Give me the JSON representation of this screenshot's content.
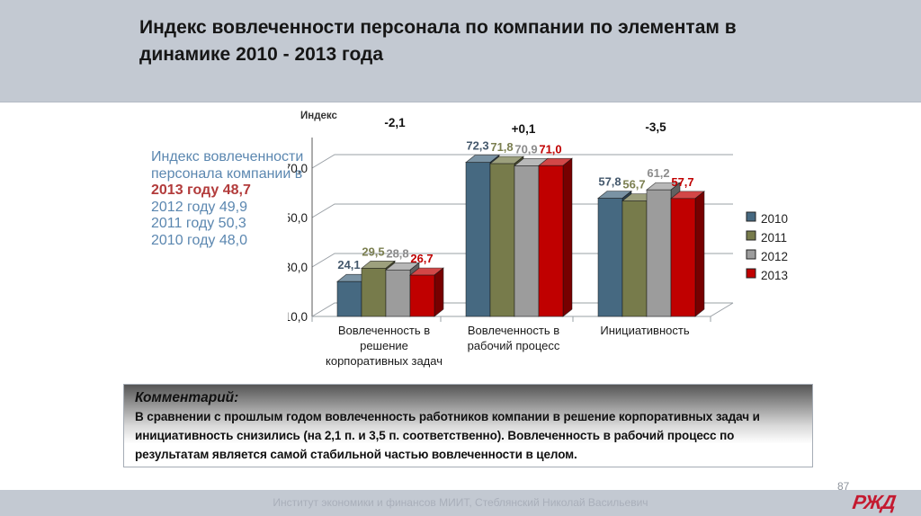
{
  "slide": {
    "title": "Индекс вовлеченности персонала по компании по элементам в динамике 2010 - 2013 года",
    "footer": {
      "credit": "Институт экономики и финансов МИИТ, Стеблянский Николай Васильевич",
      "page_number": "87",
      "logo_text": "РЖД"
    }
  },
  "info_block": {
    "lines": [
      {
        "text": "Индекс вовлеченности",
        "color": "#5B87B0",
        "bold": false
      },
      {
        "text": "персонала компании в",
        "color": "#5B87B0",
        "bold": false
      },
      {
        "text": "2013 году 48,7",
        "color": "#B23B3B",
        "bold": true
      },
      {
        "text": "2012 году 49,9",
        "color": "#5B87B0",
        "bold": false
      },
      {
        "text": "2011 году 50,3",
        "color": "#5B87B0",
        "bold": false
      },
      {
        "text": "2010 году 48,0",
        "color": "#5B87B0",
        "bold": false
      }
    ]
  },
  "comment_box": {
    "heading": "Комментарий:",
    "body": "В сравнении с прошлым годом вовлеченность работников компании в решение корпоративных задач и инициативность снизились (на 2,1 п. и 3,5 п. соответственно). Вовлеченность в рабочий процесс по результатам является самой стабильной частью вовлеченности в целом."
  },
  "chart_data": {
    "type": "bar",
    "style": "3d-clustered-column",
    "axis_title": "Индекс",
    "categories": [
      "Вовлеченность в\nрешение\nкорпоративных задач",
      "Вовлеченность в\nрабочий процесс",
      "Инициативность"
    ],
    "series": [
      {
        "name": "2010",
        "color": "#466981",
        "label_color": "#44586C",
        "values": [
          24.1,
          72.3,
          57.8
        ],
        "labels": [
          "24,1",
          "72,3",
          "57,8"
        ]
      },
      {
        "name": "2011",
        "color": "#777B4B",
        "label_color": "#7B7F50",
        "values": [
          29.5,
          71.8,
          56.7
        ],
        "labels": [
          "29,5",
          "71,8",
          "56,7"
        ]
      },
      {
        "name": "2012",
        "color": "#9C9C9C",
        "label_color": "#8C8C8C",
        "values": [
          28.8,
          70.9,
          61.2
        ],
        "labels": [
          "28,8",
          "70,9",
          "61,2"
        ]
      },
      {
        "name": "2013",
        "color": "#C00000",
        "label_color": "#C00000",
        "values": [
          26.7,
          71.0,
          57.7
        ],
        "labels": [
          "26,7",
          "71,0",
          "57,7"
        ]
      }
    ],
    "delta_labels": [
      "-2,1",
      "+0,1",
      "-3,5"
    ],
    "y_ticks": [
      10,
      30,
      50,
      70
    ],
    "y_tick_labels": [
      "10,0",
      "30,0",
      "50,0",
      "70,0"
    ],
    "ylim": [
      10,
      80
    ],
    "grid": true,
    "legend_position": "right"
  }
}
